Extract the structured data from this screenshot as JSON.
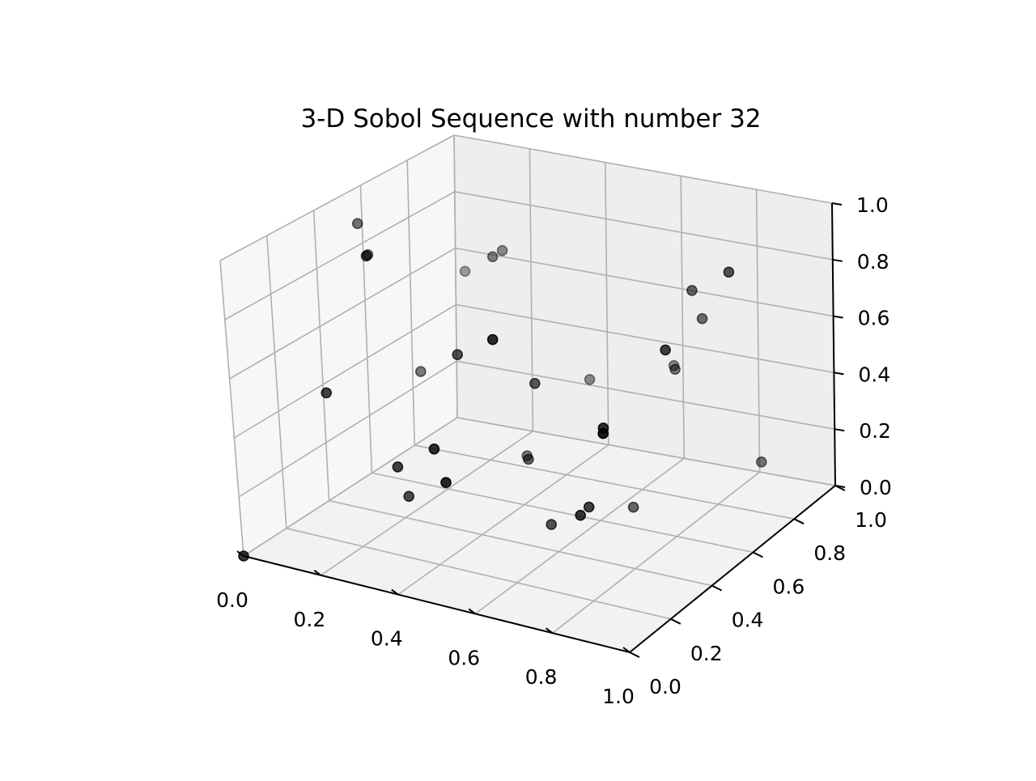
{
  "chart_data": {
    "type": "scatter",
    "projection": "3d",
    "title": "3-D Sobol Sequence with number 32",
    "xlabel": "",
    "ylabel": "",
    "zlabel": "",
    "xlim": [
      0,
      1
    ],
    "ylim": [
      0,
      1
    ],
    "zlim": [
      0,
      1
    ],
    "grid": true,
    "legend": "none",
    "marker_color": "#000000",
    "x_ticks": [
      "0.0",
      "0.2",
      "0.4",
      "0.6",
      "0.8",
      "1.0"
    ],
    "y_ticks": [
      "0.0",
      "0.2",
      "0.4",
      "0.6",
      "0.8",
      "1.0"
    ],
    "z_ticks": [
      "0.0",
      "0.2",
      "0.4",
      "0.6",
      "0.8",
      "1.0"
    ],
    "points": [
      {
        "x": 0.0,
        "y": 0.0,
        "z": 0.0
      },
      {
        "x": 0.5,
        "y": 0.5,
        "z": 0.5
      },
      {
        "x": 0.75,
        "y": 0.25,
        "z": 0.25
      },
      {
        "x": 0.25,
        "y": 0.75,
        "z": 0.75
      },
      {
        "x": 0.375,
        "y": 0.375,
        "z": 0.625
      },
      {
        "x": 0.875,
        "y": 0.875,
        "z": 0.125
      },
      {
        "x": 0.625,
        "y": 0.125,
        "z": 0.875
      },
      {
        "x": 0.125,
        "y": 0.625,
        "z": 0.375
      },
      {
        "x": 0.1875,
        "y": 0.3125,
        "z": 0.9375
      },
      {
        "x": 0.6875,
        "y": 0.8125,
        "z": 0.4375
      },
      {
        "x": 0.9375,
        "y": 0.0625,
        "z": 0.6875
      },
      {
        "x": 0.4375,
        "y": 0.5625,
        "z": 0.1875
      },
      {
        "x": 0.3125,
        "y": 0.1875,
        "z": 0.3125
      },
      {
        "x": 0.8125,
        "y": 0.6875,
        "z": 0.8125
      },
      {
        "x": 0.5625,
        "y": 0.4375,
        "z": 0.0625
      },
      {
        "x": 0.0625,
        "y": 0.9375,
        "z": 0.5625
      },
      {
        "x": 0.09375,
        "y": 0.46875,
        "z": 0.84375
      },
      {
        "x": 0.59375,
        "y": 0.96875,
        "z": 0.34375
      },
      {
        "x": 0.84375,
        "y": 0.21875,
        "z": 0.59375
      },
      {
        "x": 0.34375,
        "y": 0.71875,
        "z": 0.09375
      },
      {
        "x": 0.46875,
        "y": 0.09375,
        "z": 0.46875
      },
      {
        "x": 0.96875,
        "y": 0.59375,
        "z": 0.96875
      },
      {
        "x": 0.71875,
        "y": 0.34375,
        "z": 0.21875
      },
      {
        "x": 0.21875,
        "y": 0.84375,
        "z": 0.71875
      },
      {
        "x": 0.15625,
        "y": 0.15625,
        "z": 0.53125
      },
      {
        "x": 0.65625,
        "y": 0.65625,
        "z": 0.03125
      },
      {
        "x": 0.90625,
        "y": 0.40625,
        "z": 0.78125
      },
      {
        "x": 0.40625,
        "y": 0.90625,
        "z": 0.28125
      },
      {
        "x": 0.28125,
        "y": 0.28125,
        "z": 0.15625
      },
      {
        "x": 0.78125,
        "y": 0.78125,
        "z": 0.65625
      },
      {
        "x": 0.53125,
        "y": 0.03125,
        "z": 0.40625
      },
      {
        "x": 0.03125,
        "y": 0.53125,
        "z": 0.90625
      }
    ]
  }
}
